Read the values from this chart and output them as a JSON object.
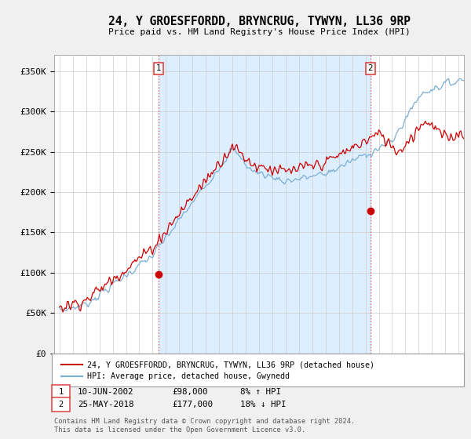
{
  "title": "24, Y GROESFFORDD, BRYNCRUG, TYWYN, LL36 9RP",
  "subtitle": "Price paid vs. HM Land Registry's House Price Index (HPI)",
  "ylabel_ticks": [
    "£0",
    "£50K",
    "£100K",
    "£150K",
    "£200K",
    "£250K",
    "£300K",
    "£350K"
  ],
  "ytick_values": [
    0,
    50000,
    100000,
    150000,
    200000,
    250000,
    300000,
    350000
  ],
  "ylim": [
    0,
    370000
  ],
  "xlim_start": 1994.6,
  "xlim_end": 2025.4,
  "sale1_x": 2002.44,
  "sale1_y": 98000,
  "sale1_label": "10-JUN-2002",
  "sale1_price": "£98,000",
  "sale1_hpi": "8% ↑ HPI",
  "sale2_x": 2018.37,
  "sale2_y": 177000,
  "sale2_label": "25-MAY-2018",
  "sale2_price": "£177,000",
  "sale2_hpi": "18% ↓ HPI",
  "line1_label": "24, Y GROESFFORDD, BRYNCRUG, TYWYN, LL36 9RP (detached house)",
  "line2_label": "HPI: Average price, detached house, Gwynedd",
  "hpi_color": "#7bafd4",
  "price_color": "#cc0000",
  "marker_color": "#cc0000",
  "vline_color": "#dd4444",
  "shade_color": "#ddeeff",
  "background_color": "#f0f0f0",
  "plot_bg_color": "#ffffff",
  "footnote": "Contains HM Land Registry data © Crown copyright and database right 2024.\nThis data is licensed under the Open Government Licence v3.0."
}
